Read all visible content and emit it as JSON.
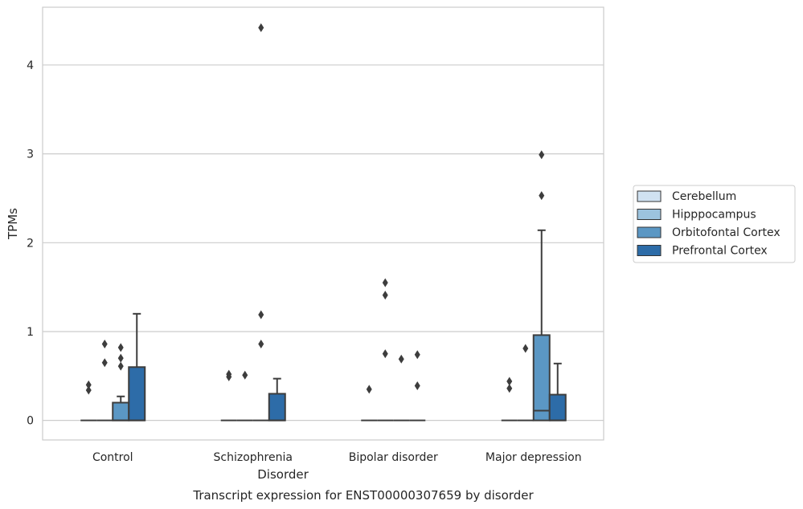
{
  "chart_data": {
    "type": "box",
    "title": "",
    "caption": "Transcript expression for ENST00000307659 by disorder",
    "xlabel": "Disorder",
    "ylabel": "TPMs",
    "ylim": [
      -0.22,
      4.65
    ],
    "yticks": [
      0,
      1,
      2,
      3,
      4
    ],
    "grid": "horizontal",
    "legend_position": "right",
    "categories": [
      "Control",
      "Schizophrenia",
      "Bipolar disorder",
      "Major depression"
    ],
    "series": [
      {
        "name": "Cerebellum",
        "color": "#d0e2f1",
        "boxes": [
          {
            "q1": 0,
            "median": 0,
            "q3": 0,
            "whisker_low": 0,
            "whisker_high": 0,
            "outliers": [
              0.34,
              0.4
            ]
          },
          {
            "q1": 0,
            "median": 0,
            "q3": 0,
            "whisker_low": 0,
            "whisker_high": 0,
            "outliers": [
              0.49,
              0.52
            ]
          },
          {
            "q1": 0,
            "median": 0,
            "q3": 0,
            "whisker_low": 0,
            "whisker_high": 0,
            "outliers": [
              0.35
            ]
          },
          {
            "q1": 0,
            "median": 0,
            "q3": 0,
            "whisker_low": 0,
            "whisker_high": 0,
            "outliers": [
              0.36,
              0.44
            ]
          }
        ]
      },
      {
        "name": "Hipppocampus",
        "color": "#9cc3de",
        "boxes": [
          {
            "q1": 0,
            "median": 0,
            "q3": 0,
            "whisker_low": 0,
            "whisker_high": 0,
            "outliers": [
              0.65,
              0.86
            ]
          },
          {
            "q1": 0,
            "median": 0,
            "q3": 0,
            "whisker_low": 0,
            "whisker_high": 0,
            "outliers": [
              0.51
            ]
          },
          {
            "q1": 0,
            "median": 0,
            "q3": 0,
            "whisker_low": 0,
            "whisker_high": 0,
            "outliers": [
              0.75,
              1.41,
              1.55
            ]
          },
          {
            "q1": 0,
            "median": 0,
            "q3": 0,
            "whisker_low": 0,
            "whisker_high": 0,
            "outliers": [
              0.81
            ]
          }
        ]
      },
      {
        "name": "Orbitofontal Cortex",
        "color": "#5b97c4",
        "boxes": [
          {
            "q1": 0,
            "median": 0,
            "q3": 0.2,
            "whisker_low": 0,
            "whisker_high": 0.27,
            "outliers": [
              0.61,
              0.7,
              0.82
            ]
          },
          {
            "q1": 0,
            "median": 0,
            "q3": 0,
            "whisker_low": 0,
            "whisker_high": 0,
            "outliers": [
              0.86,
              1.19,
              4.42
            ]
          },
          {
            "q1": 0,
            "median": 0,
            "q3": 0,
            "whisker_low": 0,
            "whisker_high": 0,
            "outliers": [
              0.69
            ]
          },
          {
            "q1": 0,
            "median": 0.11,
            "q3": 0.96,
            "whisker_low": 0,
            "whisker_high": 2.14,
            "outliers": [
              2.53,
              2.99
            ]
          }
        ]
      },
      {
        "name": "Prefrontal Cortex",
        "color": "#2d6ca8",
        "boxes": [
          {
            "q1": 0,
            "median": 0,
            "q3": 0.6,
            "whisker_low": 0,
            "whisker_high": 1.2,
            "outliers": []
          },
          {
            "q1": 0,
            "median": 0,
            "q3": 0.3,
            "whisker_low": 0,
            "whisker_high": 0.47,
            "outliers": []
          },
          {
            "q1": 0,
            "median": 0,
            "q3": 0,
            "whisker_low": 0,
            "whisker_high": 0,
            "outliers": [
              0.39,
              0.74
            ]
          },
          {
            "q1": 0,
            "median": 0,
            "q3": 0.29,
            "whisker_low": 0,
            "whisker_high": 0.64,
            "outliers": []
          }
        ]
      }
    ]
  }
}
